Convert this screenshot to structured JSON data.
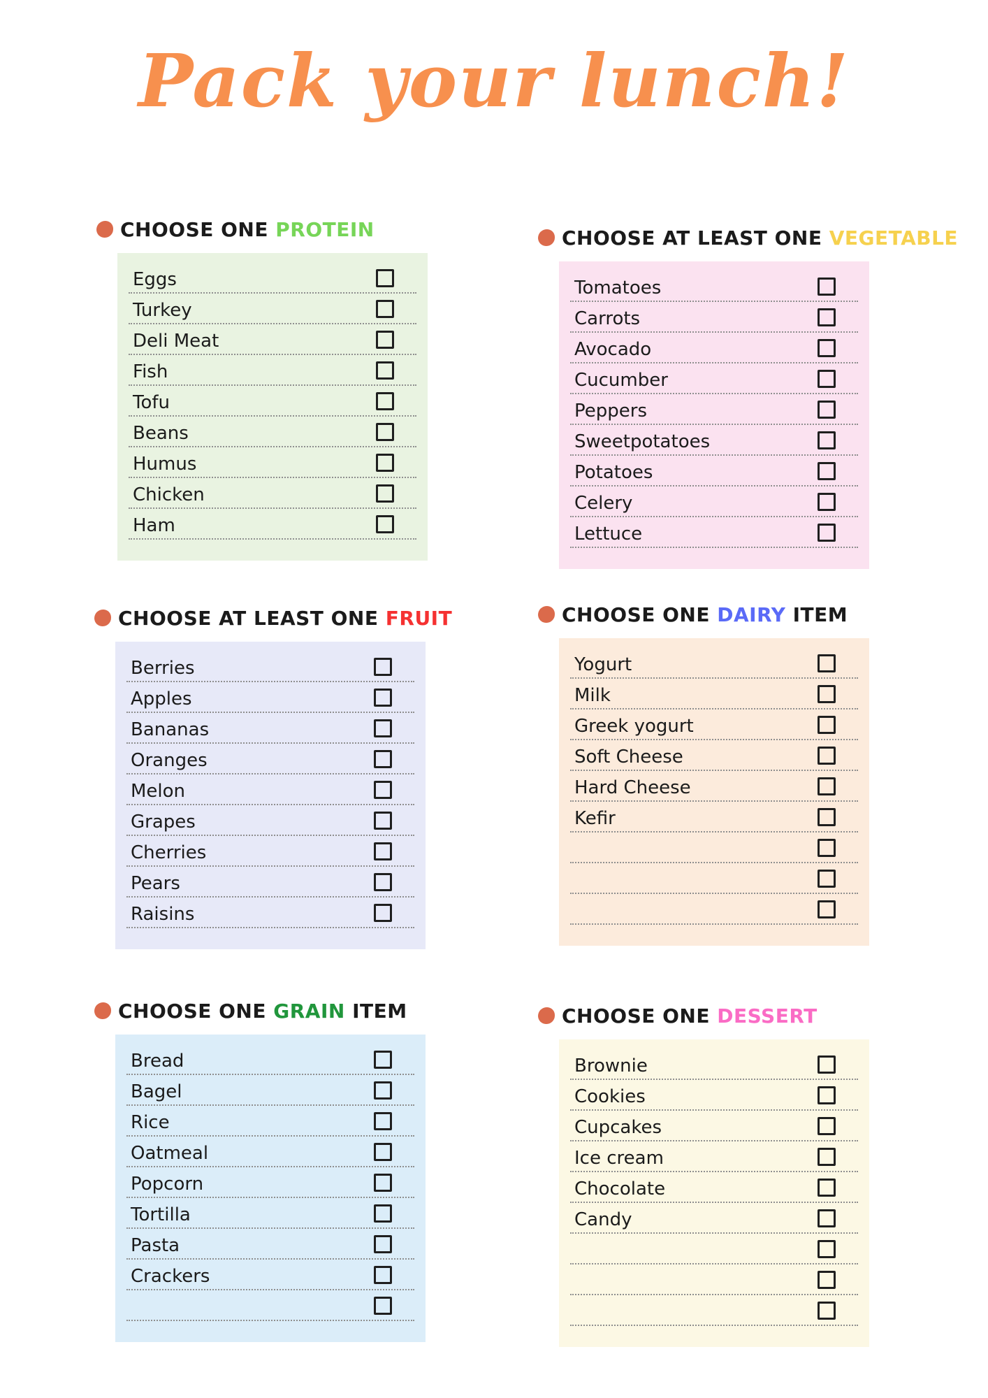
{
  "page": {
    "title": "Pack your lunch!",
    "title_color": "#F7904E",
    "bullet_color": "#DB6A4B",
    "text_color": "#1b1b1b",
    "dotted_line_color": "#8f8f8f"
  },
  "sections": [
    {
      "id": "protein",
      "heading": {
        "prefix": "CHOOSE ONE ",
        "keyword": "PROTEIN",
        "suffix": "",
        "keyword_color": "#77D558"
      },
      "panel_color": "#E9F3E1",
      "items": [
        "Eggs",
        "Turkey",
        "Deli Meat",
        "Fish",
        "Tofu",
        "Beans",
        "Humus",
        "Chicken",
        "Ham"
      ]
    },
    {
      "id": "vegetable",
      "heading": {
        "prefix": "CHOOSE AT LEAST ONE ",
        "keyword": "VEGETABLE",
        "suffix": "",
        "keyword_color": "#F6D14E"
      },
      "panel_color": "#FBE2F0",
      "items": [
        "Tomatoes",
        "Carrots",
        "Avocado",
        "Cucumber",
        "Peppers",
        "Sweetpotatoes",
        "Potatoes",
        "Celery",
        "Lettuce"
      ]
    },
    {
      "id": "fruit",
      "heading": {
        "prefix": "CHOOSE AT LEAST ONE ",
        "keyword": "FRUIT",
        "suffix": "",
        "keyword_color": "#F53131"
      },
      "panel_color": "#E7E9F8",
      "items": [
        "Berries",
        "Apples",
        "Bananas",
        "Oranges",
        "Melon",
        "Grapes",
        "Cherries",
        "Pears",
        "Raisins"
      ]
    },
    {
      "id": "dairy",
      "heading": {
        "prefix": "CHOOSE ONE ",
        "keyword": "DAIRY",
        "suffix": " ITEM",
        "keyword_color": "#5A6AF7"
      },
      "panel_color": "#FCEBDC",
      "items": [
        "Yogurt",
        "Milk",
        "Greek yogurt",
        "Soft Cheese",
        "Hard Cheese",
        "Kefir",
        "",
        "",
        ""
      ]
    },
    {
      "id": "grain",
      "heading": {
        "prefix": "CHOOSE ONE ",
        "keyword": "GRAIN",
        "suffix": " ITEM",
        "keyword_color": "#21963C"
      },
      "panel_color": "#DBEDF9",
      "items": [
        "Bread",
        "Bagel",
        "Rice",
        "Oatmeal",
        "Popcorn",
        "Tortilla",
        "Pasta",
        "Crackers",
        ""
      ]
    },
    {
      "id": "dessert",
      "heading": {
        "prefix": "CHOOSE ONE ",
        "keyword": "DESSERT",
        "suffix": "",
        "keyword_color": "#FA6CC5"
      },
      "panel_color": "#FCF8E4",
      "items": [
        "Brownie",
        "Cookies",
        "Cupcakes",
        "Ice cream",
        "Chocolate",
        "Candy",
        "",
        "",
        ""
      ]
    }
  ]
}
